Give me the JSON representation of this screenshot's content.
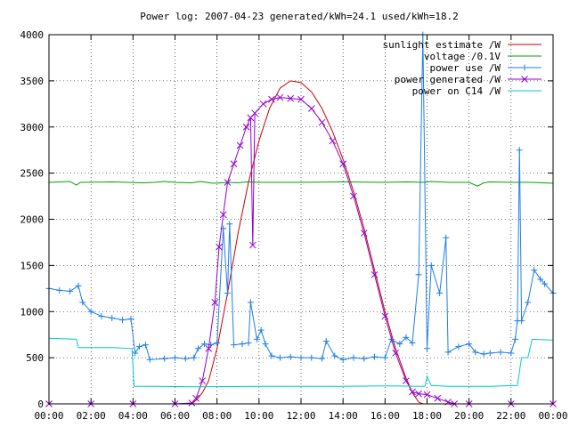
{
  "chart_data": {
    "type": "line",
    "title": "Power log: 2007-04-23 generated/kWh=24.1 used/kWh=18.2",
    "xlabel": "",
    "ylabel": "",
    "xlim": [
      0,
      24
    ],
    "ylim": [
      0,
      4000
    ],
    "xticks": [
      "00:00",
      "02:00",
      "04:00",
      "06:00",
      "08:00",
      "10:00",
      "12:00",
      "14:00",
      "16:00",
      "18:00",
      "20:00",
      "22:00",
      "00:00"
    ],
    "yticks": [
      "0",
      "500",
      "1000",
      "1500",
      "2000",
      "2500",
      "3000",
      "3500",
      "4000"
    ],
    "grid": true,
    "legend_position": "top-right",
    "series": [
      {
        "name": "sunlight estimate /W",
        "color": "#cc0000",
        "marker": "none",
        "points": [
          [
            6.8,
            0
          ],
          [
            7.0,
            40
          ],
          [
            7.3,
            120
          ],
          [
            7.6,
            250
          ],
          [
            8.0,
            600
          ],
          [
            8.5,
            1200
          ],
          [
            9.0,
            1850
          ],
          [
            9.5,
            2400
          ],
          [
            10.0,
            2850
          ],
          [
            10.5,
            3200
          ],
          [
            11.0,
            3420
          ],
          [
            11.5,
            3500
          ],
          [
            12.0,
            3480
          ],
          [
            12.5,
            3380
          ],
          [
            13.0,
            3200
          ],
          [
            13.5,
            2950
          ],
          [
            14.0,
            2650
          ],
          [
            14.5,
            2300
          ],
          [
            15.0,
            1900
          ],
          [
            15.5,
            1450
          ],
          [
            16.0,
            1000
          ],
          [
            16.5,
            600
          ],
          [
            17.0,
            280
          ],
          [
            17.3,
            120
          ],
          [
            17.6,
            20
          ],
          [
            17.8,
            0
          ]
        ]
      },
      {
        "name": "voltage /0.1V",
        "color": "#00a000",
        "marker": "none",
        "points": [
          [
            0,
            2400
          ],
          [
            1,
            2410
          ],
          [
            1.3,
            2370
          ],
          [
            1.5,
            2400
          ],
          [
            3,
            2405
          ],
          [
            4.5,
            2395
          ],
          [
            5,
            2400
          ],
          [
            5.5,
            2410
          ],
          [
            6,
            2400
          ],
          [
            6.8,
            2395
          ],
          [
            7.2,
            2410
          ],
          [
            7.8,
            2390
          ],
          [
            8.6,
            2400
          ],
          [
            9,
            2395
          ],
          [
            9.4,
            2405
          ],
          [
            10,
            2400
          ],
          [
            12,
            2400
          ],
          [
            14,
            2405
          ],
          [
            16,
            2400
          ],
          [
            17,
            2405
          ],
          [
            17.9,
            2400
          ],
          [
            18.2,
            2410
          ],
          [
            19,
            2400
          ],
          [
            20,
            2400
          ],
          [
            20.4,
            2360
          ],
          [
            20.7,
            2395
          ],
          [
            21,
            2405
          ],
          [
            22,
            2400
          ],
          [
            23,
            2400
          ],
          [
            24,
            2390
          ]
        ]
      },
      {
        "name": "power use /W",
        "color": "#1e7fe6",
        "marker": "plus",
        "points": [
          [
            0,
            1250
          ],
          [
            0.5,
            1230
          ],
          [
            1,
            1220
          ],
          [
            1.4,
            1280
          ],
          [
            1.6,
            1100
          ],
          [
            2,
            1000
          ],
          [
            2.5,
            950
          ],
          [
            3,
            930
          ],
          [
            3.5,
            910
          ],
          [
            3.9,
            920
          ],
          [
            4.1,
            550
          ],
          [
            4.3,
            620
          ],
          [
            4.6,
            640
          ],
          [
            4.8,
            480
          ],
          [
            5.5,
            490
          ],
          [
            6,
            500
          ],
          [
            6.5,
            490
          ],
          [
            6.9,
            500
          ],
          [
            7.1,
            600
          ],
          [
            7.4,
            650
          ],
          [
            7.7,
            640
          ],
          [
            8.0,
            660
          ],
          [
            8.3,
            1900
          ],
          [
            8.5,
            1200
          ],
          [
            8.6,
            1950
          ],
          [
            8.8,
            640
          ],
          [
            9.2,
            650
          ],
          [
            9.5,
            660
          ],
          [
            9.6,
            1100
          ],
          [
            9.9,
            700
          ],
          [
            10.1,
            800
          ],
          [
            10.3,
            650
          ],
          [
            10.6,
            520
          ],
          [
            11,
            500
          ],
          [
            11.5,
            510
          ],
          [
            12,
            500
          ],
          [
            12.5,
            500
          ],
          [
            13,
            490
          ],
          [
            13.2,
            680
          ],
          [
            13.6,
            520
          ],
          [
            14,
            480
          ],
          [
            14.5,
            500
          ],
          [
            15,
            490
          ],
          [
            15.5,
            510
          ],
          [
            16,
            500
          ],
          [
            16.3,
            700
          ],
          [
            16.7,
            650
          ],
          [
            17,
            720
          ],
          [
            17.3,
            660
          ],
          [
            17.6,
            1400
          ],
          [
            17.8,
            4000
          ],
          [
            18.0,
            600
          ],
          [
            18.2,
            1500
          ],
          [
            18.6,
            1200
          ],
          [
            18.9,
            1800
          ],
          [
            19,
            560
          ],
          [
            19.5,
            620
          ],
          [
            20,
            650
          ],
          [
            20.3,
            560
          ],
          [
            20.7,
            540
          ],
          [
            21,
            550
          ],
          [
            21.5,
            560
          ],
          [
            22,
            550
          ],
          [
            22.2,
            700
          ],
          [
            22.3,
            900
          ],
          [
            22.4,
            2750
          ],
          [
            22.5,
            900
          ],
          [
            22.8,
            1100
          ],
          [
            23.1,
            1450
          ],
          [
            23.4,
            1350
          ],
          [
            23.6,
            1300
          ],
          [
            24,
            1200
          ]
        ]
      },
      {
        "name": "power generated /W",
        "color": "#9400d3",
        "marker": "x",
        "points": [
          [
            0,
            0
          ],
          [
            2,
            0
          ],
          [
            4,
            0
          ],
          [
            6,
            0
          ],
          [
            6.8,
            10
          ],
          [
            7,
            60
          ],
          [
            7.3,
            250
          ],
          [
            7.6,
            600
          ],
          [
            7.9,
            1100
          ],
          [
            8.1,
            1700
          ],
          [
            8.3,
            2050
          ],
          [
            8.5,
            2400
          ],
          [
            8.8,
            2600
          ],
          [
            9.1,
            2800
          ],
          [
            9.4,
            3000
          ],
          [
            9.6,
            3100
          ],
          [
            9.7,
            1720
          ],
          [
            9.8,
            3150
          ],
          [
            10.2,
            3250
          ],
          [
            10.6,
            3300
          ],
          [
            11,
            3320
          ],
          [
            11.5,
            3310
          ],
          [
            12,
            3300
          ],
          [
            12.5,
            3200
          ],
          [
            13,
            3050
          ],
          [
            13.5,
            2850
          ],
          [
            14,
            2600
          ],
          [
            14.5,
            2250
          ],
          [
            15,
            1850
          ],
          [
            15.5,
            1400
          ],
          [
            16,
            950
          ],
          [
            16.5,
            550
          ],
          [
            17,
            250
          ],
          [
            17.3,
            130
          ],
          [
            17.6,
            110
          ],
          [
            18,
            100
          ],
          [
            18.5,
            60
          ],
          [
            19,
            20
          ],
          [
            19.3,
            0
          ],
          [
            20,
            0
          ],
          [
            22,
            0
          ],
          [
            24,
            0
          ]
        ]
      },
      {
        "name": "power on C14 /W",
        "color": "#00cccc",
        "marker": "none",
        "points": [
          [
            0,
            710
          ],
          [
            1.3,
            700
          ],
          [
            1.4,
            610
          ],
          [
            2,
            610
          ],
          [
            3,
            610
          ],
          [
            3.95,
            600
          ],
          [
            4.05,
            190
          ],
          [
            5,
            190
          ],
          [
            7,
            185
          ],
          [
            10,
            190
          ],
          [
            12,
            190
          ],
          [
            14,
            190
          ],
          [
            16,
            195
          ],
          [
            17.9,
            190
          ],
          [
            18,
            300
          ],
          [
            18.2,
            200
          ],
          [
            19,
            190
          ],
          [
            20,
            190
          ],
          [
            21,
            190
          ],
          [
            22.3,
            200
          ],
          [
            22.5,
            500
          ],
          [
            22.8,
            500
          ],
          [
            23,
            700
          ],
          [
            24,
            690
          ]
        ]
      }
    ]
  }
}
